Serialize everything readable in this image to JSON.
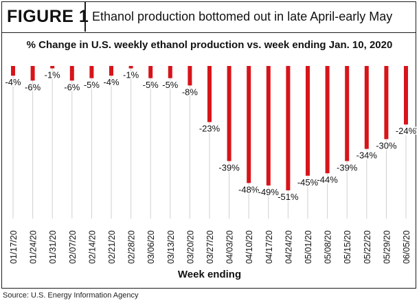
{
  "figure": {
    "label": "FIGURE 1",
    "title": "Ethanol production bottomed out in late April-early May"
  },
  "source": "Source: U.S. Energy Information Agency",
  "colors": {
    "bar": "#d7141a",
    "grid": "#cfcfcf",
    "text": "#111111"
  },
  "chart_data": {
    "type": "bar",
    "title": "% Change in U.S. weekly ethanol production vs. week ending Jan. 10, 2020",
    "xlabel": "Week ending",
    "ylabel": "",
    "categories": [
      "01/17/20",
      "01/24/20",
      "01/31/20",
      "02/07/20",
      "02/14/20",
      "02/21/20",
      "02/28/20",
      "03/06/20",
      "03/13/20",
      "03/20/20",
      "03/27/20",
      "04/03/20",
      "04/10/20",
      "04/17/20",
      "04/24/20",
      "05/01/20",
      "05/08/20",
      "05/15/20",
      "05/22/20",
      "05/29/20",
      "06/05/20"
    ],
    "values": [
      -4,
      -6,
      -1,
      -6,
      -5,
      -4,
      -1,
      -5,
      -5,
      -8,
      -23,
      -39,
      -48,
      -49,
      -51,
      -45,
      -44,
      -39,
      -34,
      -30,
      -24
    ],
    "data_labels": [
      "-4%",
      "-6%",
      "-1%",
      "-6%",
      "-5%",
      "-4%",
      "-1%",
      "-5%",
      "-5%",
      "-8%",
      "-23%",
      "-39%",
      "-48%",
      "-49%",
      "-51%",
      "-45%",
      "-44%",
      "-39%",
      "-34%",
      "-30%",
      "-24%"
    ],
    "ylim": [
      -51,
      0
    ],
    "grid": true,
    "gridlines": "vertical"
  }
}
